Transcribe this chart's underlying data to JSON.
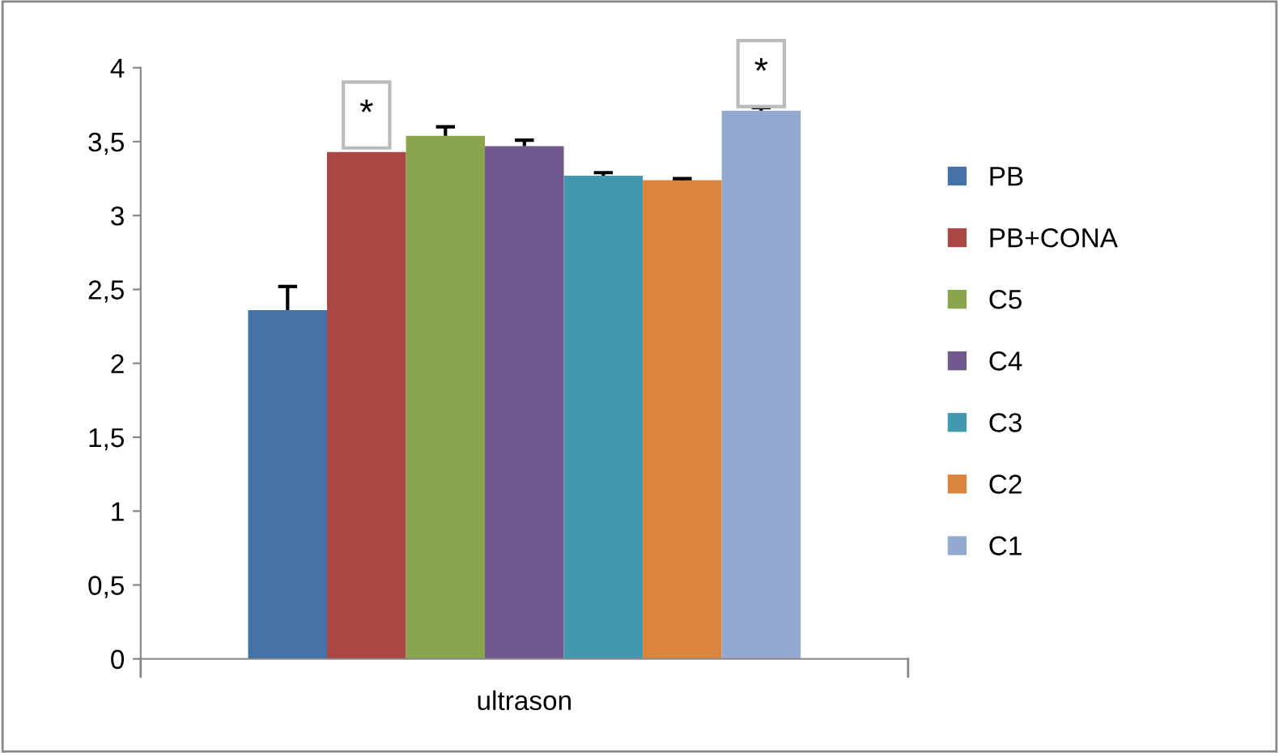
{
  "chart_data": {
    "type": "bar",
    "categories": [
      "ultrason"
    ],
    "series": [
      {
        "name": "PB",
        "color": "#4572a7",
        "values": [
          2.36
        ],
        "errors": [
          [
            2.36,
            2.52
          ]
        ]
      },
      {
        "name": "PB+CONA",
        "color": "#aa4643",
        "values": [
          3.43
        ],
        "errors": [
          null
        ]
      },
      {
        "name": "C5",
        "color": "#89a54e",
        "values": [
          3.54
        ],
        "errors": [
          [
            3.54,
            3.6
          ]
        ]
      },
      {
        "name": "C4",
        "color": "#71588f",
        "values": [
          3.47
        ],
        "errors": [
          [
            3.47,
            3.51
          ]
        ]
      },
      {
        "name": "C3",
        "color": "#4198af",
        "values": [
          3.27
        ],
        "errors": [
          [
            3.27,
            3.29
          ]
        ]
      },
      {
        "name": "C2",
        "color": "#db843d",
        "values": [
          3.24
        ],
        "errors": [
          [
            3.24,
            3.25
          ]
        ]
      },
      {
        "name": "C1",
        "color": "#93a9cf",
        "values": [
          3.71
        ],
        "errors": [
          [
            3.71,
            3.73
          ]
        ]
      }
    ],
    "ylim": [
      0,
      4
    ],
    "yticks": [
      0,
      {
        "value": 0.5,
        "label": "0,5"
      },
      1,
      {
        "value": 1.5,
        "label": "1,5"
      },
      2,
      {
        "value": 2.5,
        "label": "2,5"
      },
      3,
      {
        "value": 3.5,
        "label": "3,5"
      },
      4
    ],
    "annotations": [
      "*",
      "*"
    ],
    "grid": false,
    "legend": "right"
  }
}
